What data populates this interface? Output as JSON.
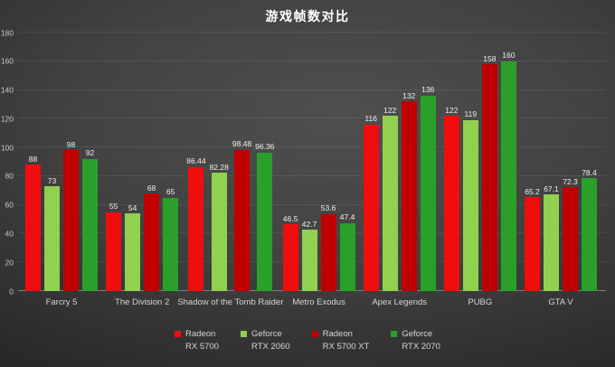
{
  "chart_data": {
    "type": "bar",
    "title": "游戏帧数对比",
    "categories": [
      "Farcry 5",
      "The Division 2",
      "Shadow of the Tomb Raider",
      "Metro Exodus",
      "Apex Legends",
      "PUBG",
      "GTA V"
    ],
    "series": [
      {
        "name": "Radeon RX 5700",
        "legend_lines": [
          "Radeon",
          "RX 5700"
        ],
        "color": "#f00d0d",
        "values": [
          88,
          55,
          86.44,
          46.5,
          116,
          122,
          65.2
        ]
      },
      {
        "name": "Geforce RTX 2060",
        "legend_lines": [
          "Geforce",
          "RTX 2060"
        ],
        "color": "#92d050",
        "values": [
          73,
          54,
          82.28,
          42.7,
          122,
          119,
          67.1
        ]
      },
      {
        "name": "Radeon RX 5700 XT",
        "legend_lines": [
          "Radeon",
          "RX 5700 XT"
        ],
        "color": "#c00000",
        "values": [
          98,
          68,
          98.48,
          53.6,
          132,
          158,
          72.3
        ]
      },
      {
        "name": "Geforce RTX 2070",
        "legend_lines": [
          "Geforce",
          "RTX 2070"
        ],
        "color": "#2aa02a",
        "values": [
          92,
          65,
          96.36,
          47.4,
          136,
          160,
          78.4
        ]
      }
    ],
    "ylim": [
      0,
      180
    ],
    "ytick_step": 20,
    "grid": true,
    "legend_position": "bottom",
    "colors": {
      "background_center": "#4f4f4f",
      "background_edge": "#262626",
      "title_text": "#ffffff",
      "axis_line": "#7d7d7d",
      "gridline": "rgba(255,255,255,0.08)",
      "tick_text": "#c6c6c6",
      "data_label_text": "#efefef",
      "legend_text": "#d5d5d5"
    }
  }
}
